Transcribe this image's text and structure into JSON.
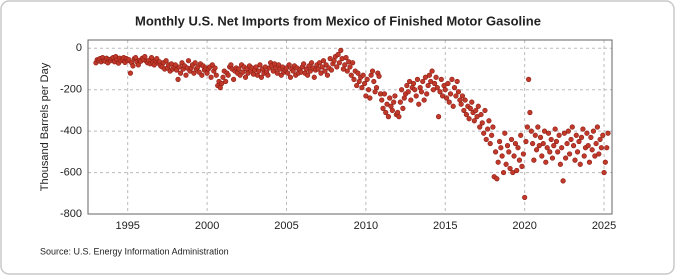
{
  "chart_data": {
    "type": "scatter",
    "title": "Monthly U.S. Net Imports from Mexico of Finished Motor Gasoline",
    "y_label": "Thousand Barrels per Day",
    "source": "Source: U.S. Energy Information Administration",
    "color": "#c0392b",
    "grid": true,
    "xlim": [
      1992.5,
      2025.5
    ],
    "ylim": [
      -800,
      40
    ],
    "xticks": [
      1995,
      2000,
      2005,
      2010,
      2015,
      2020,
      2025
    ],
    "yticks": [
      0,
      -200,
      -400,
      -600,
      -800
    ],
    "x": [
      1993.0,
      1993.08,
      1993.17,
      1993.25,
      1993.33,
      1993.42,
      1993.5,
      1993.58,
      1993.67,
      1993.75,
      1993.83,
      1993.92,
      1994.0,
      1994.08,
      1994.17,
      1994.25,
      1994.33,
      1994.42,
      1994.5,
      1994.58,
      1994.67,
      1994.75,
      1994.83,
      1994.92,
      1995.0,
      1995.08,
      1995.17,
      1995.25,
      1995.33,
      1995.42,
      1995.5,
      1995.58,
      1995.67,
      1995.75,
      1995.83,
      1995.92,
      1996.0,
      1996.08,
      1996.17,
      1996.25,
      1996.33,
      1996.42,
      1996.5,
      1996.58,
      1996.67,
      1996.75,
      1996.83,
      1996.92,
      1997.0,
      1997.08,
      1997.17,
      1997.25,
      1997.33,
      1997.42,
      1997.5,
      1997.58,
      1997.67,
      1997.75,
      1997.83,
      1997.92,
      1998.0,
      1998.08,
      1998.17,
      1998.25,
      1998.33,
      1998.42,
      1998.5,
      1998.58,
      1998.67,
      1998.75,
      1998.83,
      1998.92,
      1999.0,
      1999.08,
      1999.17,
      1999.25,
      1999.33,
      1999.42,
      1999.5,
      1999.58,
      1999.67,
      1999.75,
      1999.83,
      1999.92,
      2000.0,
      2000.08,
      2000.17,
      2000.25,
      2000.33,
      2000.42,
      2000.5,
      2000.58,
      2000.67,
      2000.75,
      2000.83,
      2000.92,
      2001.0,
      2001.08,
      2001.17,
      2001.25,
      2001.33,
      2001.42,
      2001.5,
      2001.58,
      2001.67,
      2001.75,
      2001.83,
      2001.92,
      2002.0,
      2002.08,
      2002.17,
      2002.25,
      2002.33,
      2002.42,
      2002.5,
      2002.58,
      2002.67,
      2002.75,
      2002.83,
      2002.92,
      2003.0,
      2003.08,
      2003.17,
      2003.25,
      2003.33,
      2003.42,
      2003.5,
      2003.58,
      2003.67,
      2003.75,
      2003.83,
      2003.92,
      2004.0,
      2004.08,
      2004.17,
      2004.25,
      2004.33,
      2004.42,
      2004.5,
      2004.58,
      2004.67,
      2004.75,
      2004.83,
      2004.92,
      2005.0,
      2005.08,
      2005.17,
      2005.25,
      2005.33,
      2005.42,
      2005.5,
      2005.58,
      2005.67,
      2005.75,
      2005.83,
      2005.92,
      2006.0,
      2006.08,
      2006.17,
      2006.25,
      2006.33,
      2006.42,
      2006.5,
      2006.58,
      2006.67,
      2006.75,
      2006.83,
      2006.92,
      2007.0,
      2007.08,
      2007.17,
      2007.25,
      2007.33,
      2007.42,
      2007.5,
      2007.58,
      2007.67,
      2007.75,
      2007.83,
      2007.92,
      2008.0,
      2008.08,
      2008.17,
      2008.25,
      2008.33,
      2008.42,
      2008.5,
      2008.58,
      2008.67,
      2008.75,
      2008.83,
      2008.92,
      2009.0,
      2009.08,
      2009.17,
      2009.25,
      2009.33,
      2009.42,
      2009.5,
      2009.58,
      2009.67,
      2009.75,
      2009.83,
      2009.92,
      2010.0,
      2010.08,
      2010.17,
      2010.25,
      2010.33,
      2010.42,
      2010.5,
      2010.58,
      2010.67,
      2010.75,
      2010.83,
      2010.92,
      2011.0,
      2011.08,
      2011.17,
      2011.25,
      2011.33,
      2011.42,
      2011.5,
      2011.58,
      2011.67,
      2011.75,
      2011.83,
      2011.92,
      2012.0,
      2012.08,
      2012.17,
      2012.25,
      2012.33,
      2012.42,
      2012.5,
      2012.58,
      2012.67,
      2012.75,
      2012.83,
      2012.92,
      2013.0,
      2013.08,
      2013.17,
      2013.25,
      2013.33,
      2013.42,
      2013.5,
      2013.58,
      2013.67,
      2013.75,
      2013.83,
      2013.92,
      2014.0,
      2014.08,
      2014.17,
      2014.25,
      2014.33,
      2014.42,
      2014.5,
      2014.58,
      2014.67,
      2014.75,
      2014.83,
      2014.92,
      2015.0,
      2015.08,
      2015.17,
      2015.25,
      2015.33,
      2015.42,
      2015.5,
      2015.58,
      2015.67,
      2015.75,
      2015.83,
      2015.92,
      2016.0,
      2016.08,
      2016.17,
      2016.25,
      2016.33,
      2016.42,
      2016.5,
      2016.58,
      2016.67,
      2016.75,
      2016.83,
      2016.92,
      2017.0,
      2017.08,
      2017.17,
      2017.25,
      2017.33,
      2017.42,
      2017.5,
      2017.58,
      2017.67,
      2017.75,
      2017.83,
      2017.92,
      2018.0,
      2018.08,
      2018.17,
      2018.25,
      2018.33,
      2018.42,
      2018.5,
      2018.58,
      2018.67,
      2018.75,
      2018.83,
      2018.92,
      2019.0,
      2019.08,
      2019.17,
      2019.25,
      2019.33,
      2019.42,
      2019.5,
      2019.58,
      2019.67,
      2019.75,
      2019.83,
      2019.92,
      2020.0,
      2020.08,
      2020.17,
      2020.25,
      2020.33,
      2020.42,
      2020.5,
      2020.58,
      2020.67,
      2020.75,
      2020.83,
      2020.92,
      2021.0,
      2021.08,
      2021.17,
      2021.25,
      2021.33,
      2021.42,
      2021.5,
      2021.58,
      2021.67,
      2021.75,
      2021.83,
      2021.92,
      2022.0,
      2022.08,
      2022.17,
      2022.25,
      2022.33,
      2022.42,
      2022.5,
      2022.58,
      2022.67,
      2022.75,
      2022.83,
      2022.92,
      2023.0,
      2023.08,
      2023.17,
      2023.25,
      2023.33,
      2023.42,
      2023.5,
      2023.58,
      2023.67,
      2023.75,
      2023.83,
      2023.92,
      2024.0,
      2024.08,
      2024.17,
      2024.25,
      2024.33,
      2024.42,
      2024.5,
      2024.58,
      2024.67,
      2024.75,
      2024.83,
      2024.92,
      2025.0,
      2025.08,
      2025.17,
      2025.25
    ],
    "values": [
      -70,
      -55,
      -60,
      -50,
      -65,
      -45,
      -58,
      -62,
      -48,
      -70,
      -55,
      -60,
      -50,
      -45,
      -65,
      -40,
      -55,
      -72,
      -48,
      -60,
      -52,
      -45,
      -68,
      -50,
      -60,
      -55,
      -120,
      -70,
      -85,
      -50,
      -45,
      -65,
      -80,
      -58,
      -62,
      -48,
      -55,
      -40,
      -62,
      -70,
      -58,
      -75,
      -45,
      -68,
      -80,
      -60,
      -50,
      -72,
      -65,
      -85,
      -90,
      -70,
      -100,
      -60,
      -95,
      -80,
      -110,
      -75,
      -100,
      -90,
      -80,
      -105,
      -150,
      -90,
      -120,
      -70,
      -100,
      -85,
      -130,
      -95,
      -60,
      -110,
      -95,
      -80,
      -120,
      -70,
      -100,
      -90,
      -115,
      -75,
      -130,
      -85,
      -105,
      -95,
      -120,
      -100,
      -90,
      -140,
      -80,
      -110,
      -95,
      -130,
      -180,
      -160,
      -190,
      -170,
      -140,
      -110,
      -160,
      -120,
      -130,
      -90,
      -80,
      -100,
      -150,
      -110,
      -95,
      -120,
      -100,
      -130,
      -80,
      -115,
      -90,
      -140,
      -100,
      -120,
      -85,
      -110,
      -95,
      -125,
      -105,
      -90,
      -130,
      -110,
      -80,
      -140,
      -100,
      -120,
      -90,
      -115,
      -130,
      -95,
      -70,
      -85,
      -110,
      -75,
      -95,
      -120,
      -80,
      -100,
      -130,
      -90,
      -115,
      -105,
      -95,
      -120,
      -80,
      -140,
      -100,
      -110,
      -85,
      -130,
      -95,
      -120,
      -105,
      -115,
      -90,
      -75,
      -120,
      -100,
      -130,
      -85,
      -110,
      -70,
      -95,
      -140,
      -105,
      -80,
      -100,
      -70,
      -120,
      -90,
      -60,
      -110,
      -80,
      -130,
      -95,
      -50,
      -105,
      -75,
      -60,
      -40,
      -90,
      -30,
      -70,
      -10,
      -50,
      -100,
      -80,
      -45,
      -110,
      -65,
      -90,
      -130,
      -70,
      -150,
      -110,
      -180,
      -120,
      -160,
      -140,
      -190,
      -130,
      -170,
      -230,
      -150,
      -200,
      -240,
      -130,
      -110,
      -160,
      -210,
      -190,
      -120,
      -135,
      -220,
      -250,
      -290,
      -220,
      -310,
      -270,
      -330,
      -240,
      -280,
      -300,
      -260,
      -230,
      -320,
      -310,
      -330,
      -260,
      -200,
      -290,
      -240,
      -220,
      -180,
      -210,
      -160,
      -250,
      -190,
      -170,
      -200,
      -230,
      -150,
      -270,
      -190,
      -210,
      -160,
      -250,
      -140,
      -220,
      -180,
      -130,
      -160,
      -110,
      -200,
      -170,
      -140,
      -190,
      -330,
      -210,
      -150,
      -230,
      -180,
      -200,
      -240,
      -170,
      -260,
      -220,
      -150,
      -280,
      -190,
      -230,
      -160,
      -210,
      -250,
      -270,
      -230,
      -300,
      -250,
      -320,
      -280,
      -340,
      -290,
      -260,
      -310,
      -350,
      -300,
      -330,
      -280,
      -380,
      -320,
      -360,
      -410,
      -300,
      -440,
      -390,
      -350,
      -460,
      -420,
      -380,
      -620,
      -500,
      -630,
      -550,
      -450,
      -480,
      -520,
      -600,
      -410,
      -560,
      -470,
      -500,
      -580,
      -440,
      -600,
      -520,
      -460,
      -590,
      -480,
      -540,
      -420,
      -570,
      -510,
      -720,
      -450,
      -380,
      -150,
      -310,
      -400,
      -460,
      -540,
      -420,
      -490,
      -380,
      -470,
      -430,
      -520,
      -460,
      -400,
      -550,
      -480,
      -410,
      -500,
      -440,
      -530,
      -470,
      -390,
      -450,
      -500,
      -420,
      -560,
      -480,
      -640,
      -410,
      -530,
      -460,
      -400,
      -510,
      -440,
      -380,
      -470,
      -540,
      -420,
      -500,
      -450,
      -560,
      -430,
      -390,
      -520,
      -480,
      -410,
      -470,
      -550,
      -430,
      -490,
      -400,
      -520,
      -460,
      -380,
      -510,
      -440,
      -480,
      -420,
      -600,
      -550,
      -480,
      -410
    ]
  }
}
